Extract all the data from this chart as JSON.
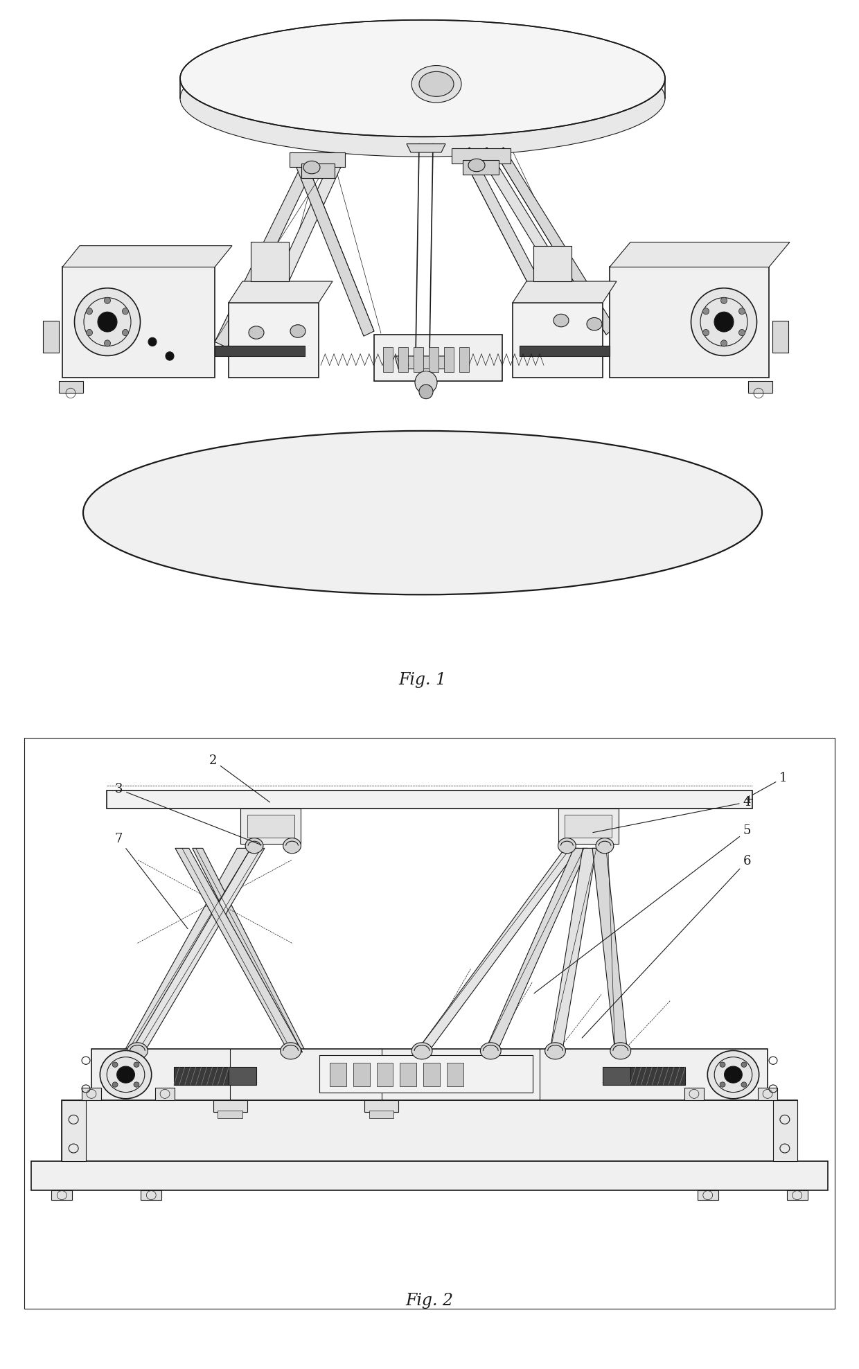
{
  "fig_width": 12.4,
  "fig_height": 19.76,
  "dpi": 100,
  "background_color": "#ffffff",
  "line_color": "#1a1a1a",
  "fig1_label": "Fig. 1",
  "fig2_label": "Fig. 2",
  "label_fontsize": 17,
  "annotation_fontsize": 13
}
